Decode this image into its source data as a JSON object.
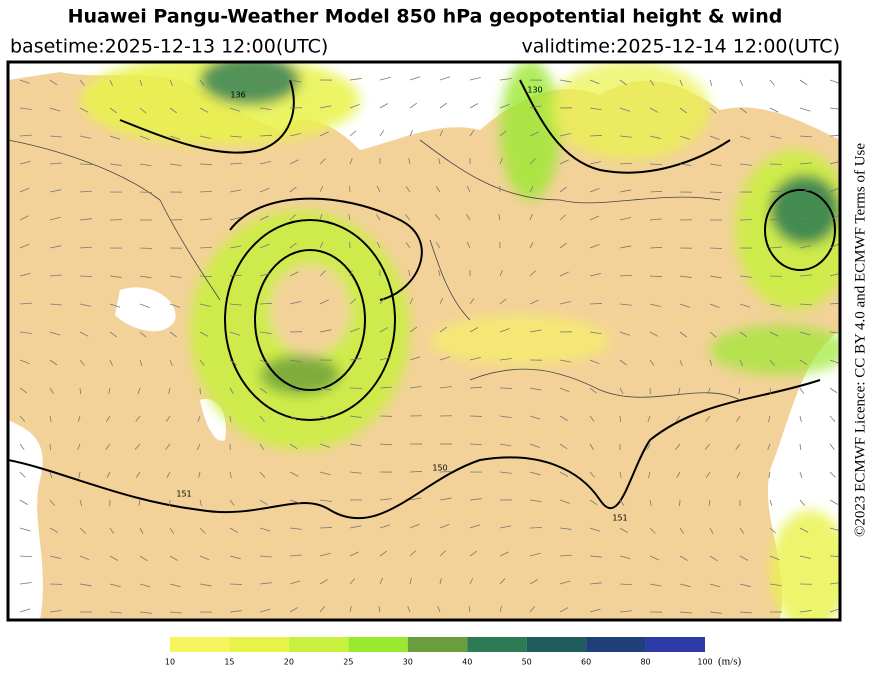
{
  "header": {
    "title": "Huawei Pangu-Weather Model 850 hPa geopotential height & wind",
    "basetime": "basetime:2025-12-13 12:00(UTC)",
    "validtime": "validtime:2025-12-14 12:00(UTC)"
  },
  "licence": "©2023 ECMWF Licence: CC BY 4.0 and ECMWF Terms of Use",
  "contour_labels": [
    "150",
    "151",
    "151",
    "136",
    "130"
  ],
  "legend": {
    "ticks": [
      10,
      15,
      20,
      25,
      30,
      40,
      50,
      60,
      80,
      100
    ],
    "colors": [
      "#f7f55e",
      "#e8f348",
      "#c8f03c",
      "#9be830",
      "#6a9e3c",
      "#2e7a55",
      "#1d5c5a",
      "#1f3f78",
      "#2b3aa6"
    ],
    "unit": "(m/s)"
  }
}
